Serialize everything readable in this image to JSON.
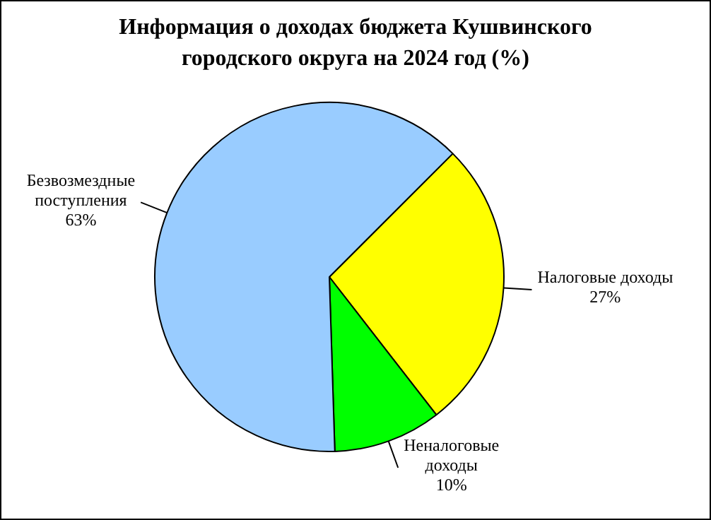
{
  "chart_data": {
    "type": "pie",
    "title": "Информация о доходах бюджета Кушвинского городского округа на 2024 год (%)",
    "categories": [
      "Налоговые доходы",
      "Неналоговые доходы",
      "Безвозмездные поступления"
    ],
    "values": [
      27,
      10,
      63
    ],
    "value_labels": [
      "27%",
      "10%",
      "63%"
    ],
    "colors": [
      "#ffff00",
      "#00ff00",
      "#99ccff"
    ],
    "legend": false
  }
}
